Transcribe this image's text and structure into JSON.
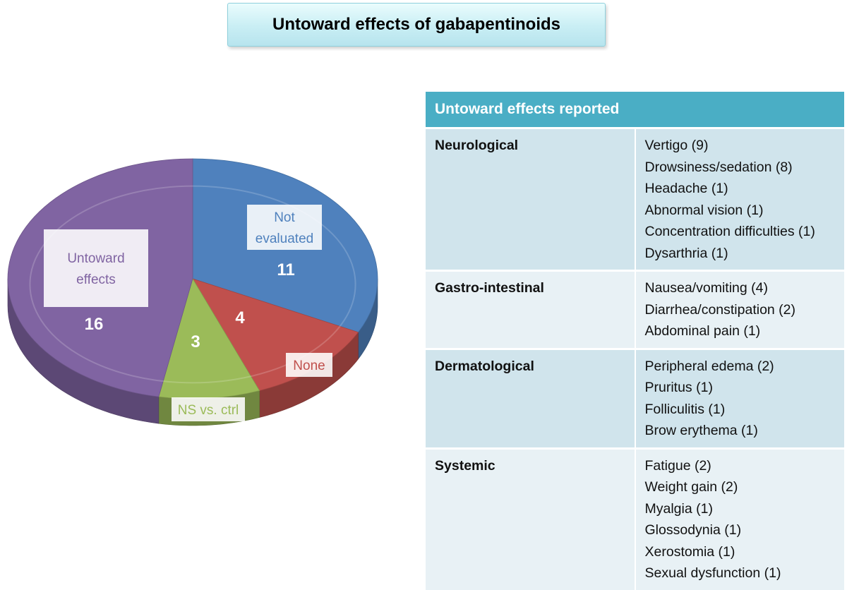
{
  "title": "Untoward effects of gabapentinoids",
  "chart_data": {
    "type": "pie",
    "slices": [
      {
        "label": "Not evaluated",
        "value": 11,
        "color": "#4f81bd"
      },
      {
        "label": "None",
        "value": 4,
        "color": "#c0504d"
      },
      {
        "label": "NS vs. ctrl",
        "value": 3,
        "color": "#9bbb59"
      },
      {
        "label": "Untoward effects",
        "value": 16,
        "color": "#8064a2"
      }
    ]
  },
  "table": {
    "header": "Untoward  effects reported",
    "rows": [
      {
        "category": "Neurological",
        "effects": [
          "Vertigo (9)",
          "Drowsiness/sedation (8)",
          "Headache (1)",
          "Abnormal vision (1)",
          "Concentration difficulties (1)",
          "Dysarthria (1)"
        ]
      },
      {
        "category": "Gastro-intestinal",
        "effects": [
          "Nausea/vomiting (4)",
          "Diarrhea/constipation (2)",
          "Abdominal pain (1)"
        ]
      },
      {
        "category": "Dermatological",
        "effects": [
          "Peripheral edema (2)",
          "Pruritus (1)",
          "Folliculitis (1)",
          "Brow erythema (1)"
        ]
      },
      {
        "category": "Systemic",
        "effects": [
          "Fatigue (2)",
          "Weight gain (2)",
          "Myalgia (1)",
          "Glossodynia (1)",
          "Xerostomia (1)",
          "Sexual dysfunction (1)"
        ]
      }
    ]
  }
}
